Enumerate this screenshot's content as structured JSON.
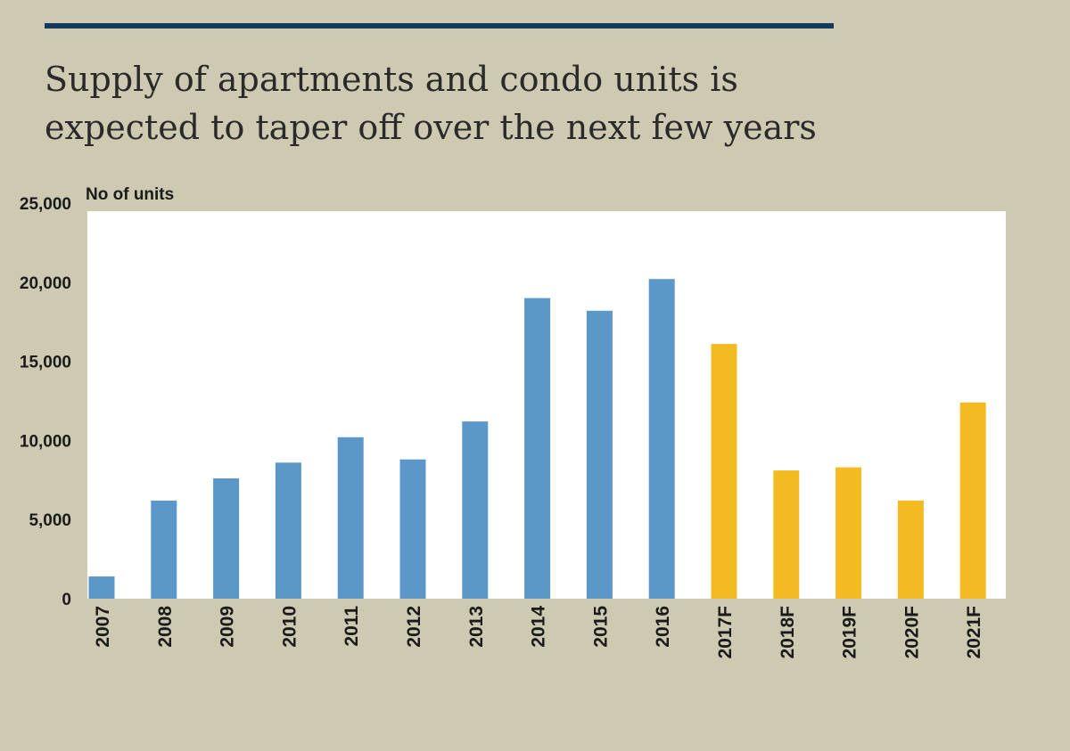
{
  "colors": {
    "background": "#cdcab1",
    "plot_area": "#ffffff",
    "rule": "#123a5c",
    "actual": "#5b97c8",
    "forecast": "#f3bb21"
  },
  "chart_data": {
    "type": "bar",
    "title_lines": [
      "Supply of apartments and condo units is",
      "expected to taper off over the next few years"
    ],
    "ylabel": "No of units",
    "ylim": [
      0,
      25000
    ],
    "yticks": [
      "0",
      "5,000",
      "10,000",
      "15,000",
      "20,000",
      "25,000"
    ],
    "ytick_values": [
      0,
      5000,
      10000,
      15000,
      20000,
      25000
    ],
    "grid": false,
    "categories": [
      "2007",
      "2008",
      "2009",
      "2010",
      "2011",
      "2012",
      "2013",
      "2014",
      "2015",
      "2016",
      "2017F",
      "2018F",
      "2019F",
      "2020F",
      "2021F"
    ],
    "values": [
      1400,
      6200,
      7600,
      8600,
      10200,
      8800,
      11200,
      19000,
      18200,
      20200,
      16100,
      8100,
      8300,
      6200,
      12400
    ],
    "forecast_from_index": 10
  }
}
